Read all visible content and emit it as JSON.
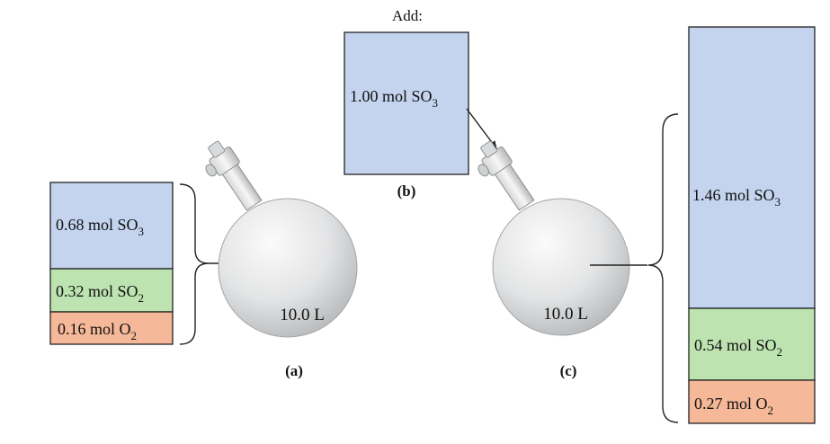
{
  "colors": {
    "so3": "#c4d4ef",
    "so2": "#bde3b0",
    "o2": "#f5b898",
    "flask_light": "#f7f7f7",
    "flask_dark": "#b9bbbd"
  },
  "add_label": "Add:",
  "panel_a": {
    "caption": "(a)",
    "volume": "10.0 L",
    "so3": {
      "text": "0.68 mol SO",
      "sub": "3"
    },
    "so2": {
      "text": "0.32 mol SO",
      "sub": "2"
    },
    "o2": {
      "text": "0.16 mol O",
      "sub": "2"
    }
  },
  "panel_b": {
    "caption": "(b)",
    "so3": {
      "text": "1.00 mol SO",
      "sub": "3"
    }
  },
  "panel_c": {
    "caption": "(c)",
    "volume": "10.0 L",
    "so3": {
      "text": "1.46 mol SO",
      "sub": "3"
    },
    "so2": {
      "text": "0.54 mol SO",
      "sub": "2"
    },
    "o2": {
      "text": "0.27 mol O",
      "sub": "2"
    }
  }
}
